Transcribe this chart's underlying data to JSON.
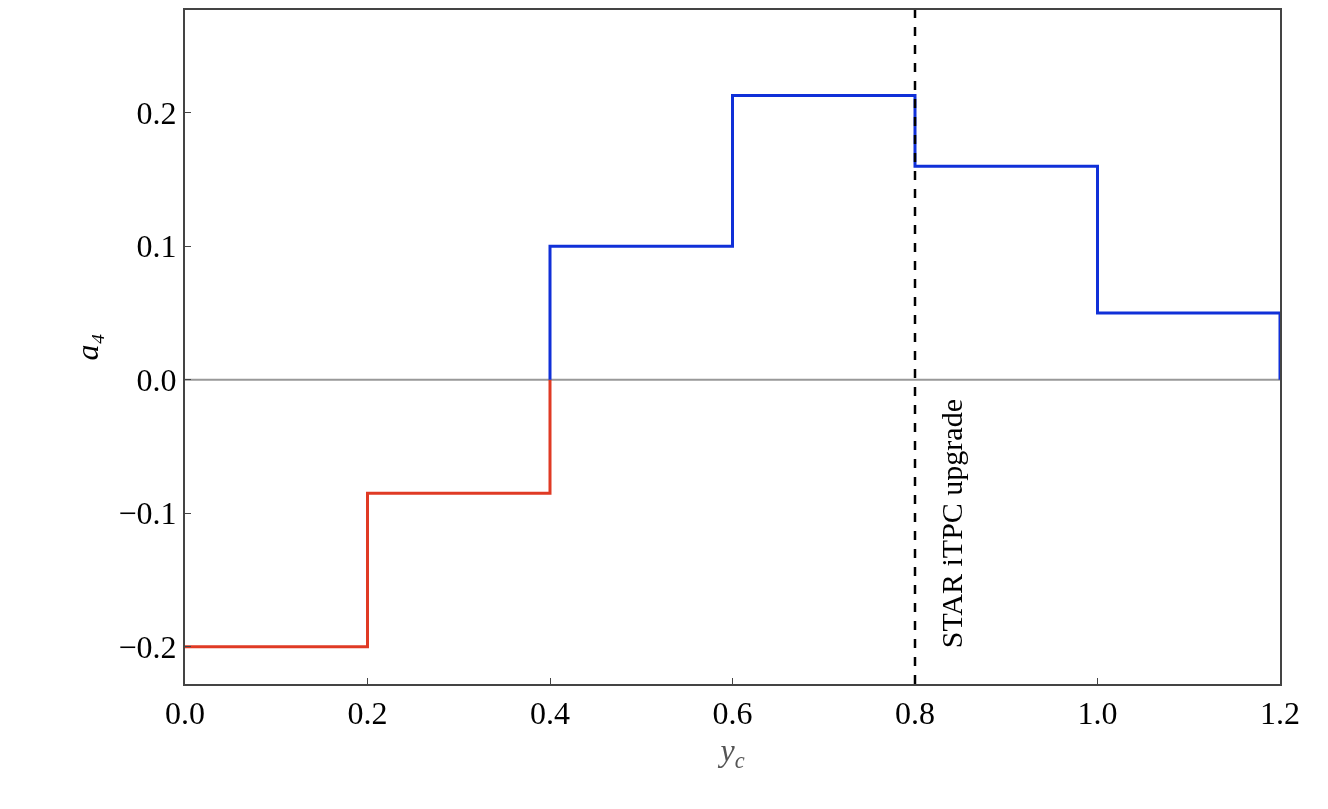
{
  "chart_data": {
    "type": "step",
    "xlabel": "y$_{c}$",
    "ylabel": "a₄",
    "series": [
      {
        "color": "#e03a24",
        "x": [
          0.0,
          0.2,
          0.4
        ],
        "values": [
          -0.2,
          -0.085,
          0
        ]
      },
      {
        "color": "#1030d8",
        "x": [
          0.4,
          0.4,
          0.6,
          0.8,
          1.0,
          1.2
        ],
        "values": [
          0,
          0.1,
          0.213,
          0.16,
          0.05,
          0
        ]
      }
    ],
    "xlim": [
      0.0,
      1.2
    ],
    "xticks": [
      {
        "value": 0.0,
        "label": "0.0"
      },
      0.2,
      0.4,
      0.6,
      0.8,
      {
        "value": 1.0,
        "label": "1.0"
      },
      1.2
    ],
    "ylim": [
      -0.228,
      0.277
    ],
    "yticks": [
      {
        "value": -0.2,
        "label": "−0.2"
      },
      {
        "value": -0.1,
        "label": "−0.1"
      },
      {
        "value": 0.0,
        "label": "0.0"
      },
      0.1,
      0.2
    ],
    "ref_lines": [
      {
        "axis": "y",
        "value": 0,
        "label": null,
        "color": "#999999",
        "line_style": "solid"
      },
      {
        "axis": "x",
        "value": 0.8,
        "label": "STAR iTPC upgrade",
        "color": "#000000",
        "line_style": "dashed"
      }
    ],
    "grid": false,
    "marker": "none",
    "line_style": "solid"
  }
}
